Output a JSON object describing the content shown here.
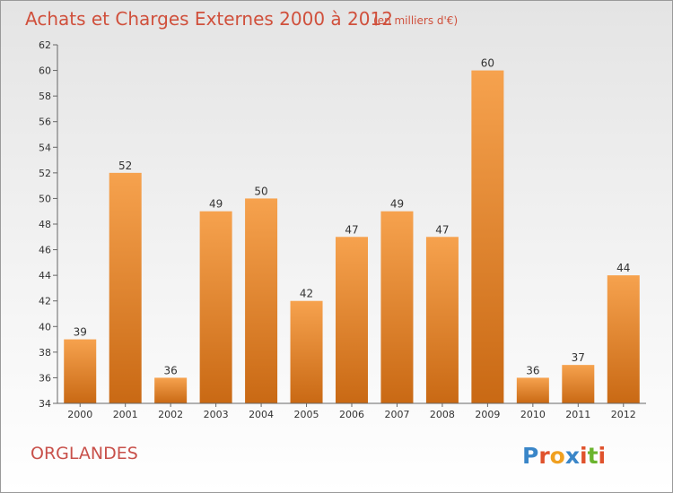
{
  "chart_data": {
    "type": "bar",
    "title": "Achats et Charges Externes 2000 à 2012",
    "subtitle": "(en milliers d'€)",
    "categories": [
      "2000",
      "2001",
      "2002",
      "2003",
      "2004",
      "2005",
      "2006",
      "2007",
      "2008",
      "2009",
      "2010",
      "2011",
      "2012"
    ],
    "values": [
      39,
      52,
      36,
      49,
      50,
      42,
      47,
      49,
      47,
      60,
      36,
      37,
      44
    ],
    "ylim": [
      34,
      62
    ],
    "yticks": [
      34,
      36,
      38,
      40,
      42,
      44,
      46,
      48,
      50,
      52,
      54,
      56,
      58,
      60,
      62
    ],
    "xlabel": "",
    "ylabel": "",
    "grid": false,
    "bar_color_light": "#f6a24e",
    "bar_color_dark": "#c96914"
  },
  "footer": {
    "commune": "ORGLANDES",
    "logo": "Proxiti"
  },
  "logo_colors": [
    "#3a86c8",
    "#e0522c",
    "#f0a020",
    "#3a86c8",
    "#e0522c",
    "#6ab42e",
    "#e0522c"
  ]
}
